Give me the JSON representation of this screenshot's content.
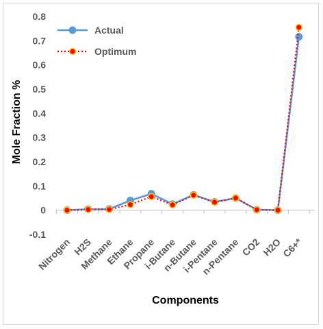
{
  "chart_data": {
    "type": "line",
    "title": "",
    "xlabel": "Components",
    "ylabel": "Mole Fraction %",
    "ylim": [
      -0.1,
      0.8
    ],
    "yticks": [
      -0.1,
      0,
      0.1,
      0.2,
      0.3,
      0.4,
      0.5,
      0.6,
      0.7,
      0.8
    ],
    "ytick_labels": [
      "-0.1",
      "0",
      "0.1",
      "0.2",
      "0.3",
      "0.4",
      "0.5",
      "0.6",
      "0.7",
      "0.8"
    ],
    "grid": false,
    "legend_position": "top-left",
    "categories": [
      "Nitrogen",
      "H2S",
      "Methane",
      "Ethane",
      "Propane",
      "i-Butane",
      "n-Butane",
      "i-Pentane",
      "n-Pentane",
      "CO2",
      "H2O",
      "C6+*"
    ],
    "series": [
      {
        "name": "Actual",
        "color": "#5b9bd5",
        "line_style": "solid",
        "values": [
          0.0,
          0.004,
          0.005,
          0.04,
          0.068,
          0.025,
          0.063,
          0.034,
          0.05,
          0.002,
          0.0,
          0.716
        ]
      },
      {
        "name": "Optimum",
        "color": "#ff0000",
        "line_style": "dotted",
        "values": [
          0.0,
          0.003,
          0.003,
          0.023,
          0.056,
          0.022,
          0.062,
          0.033,
          0.05,
          0.002,
          0.0,
          0.755
        ]
      }
    ]
  }
}
